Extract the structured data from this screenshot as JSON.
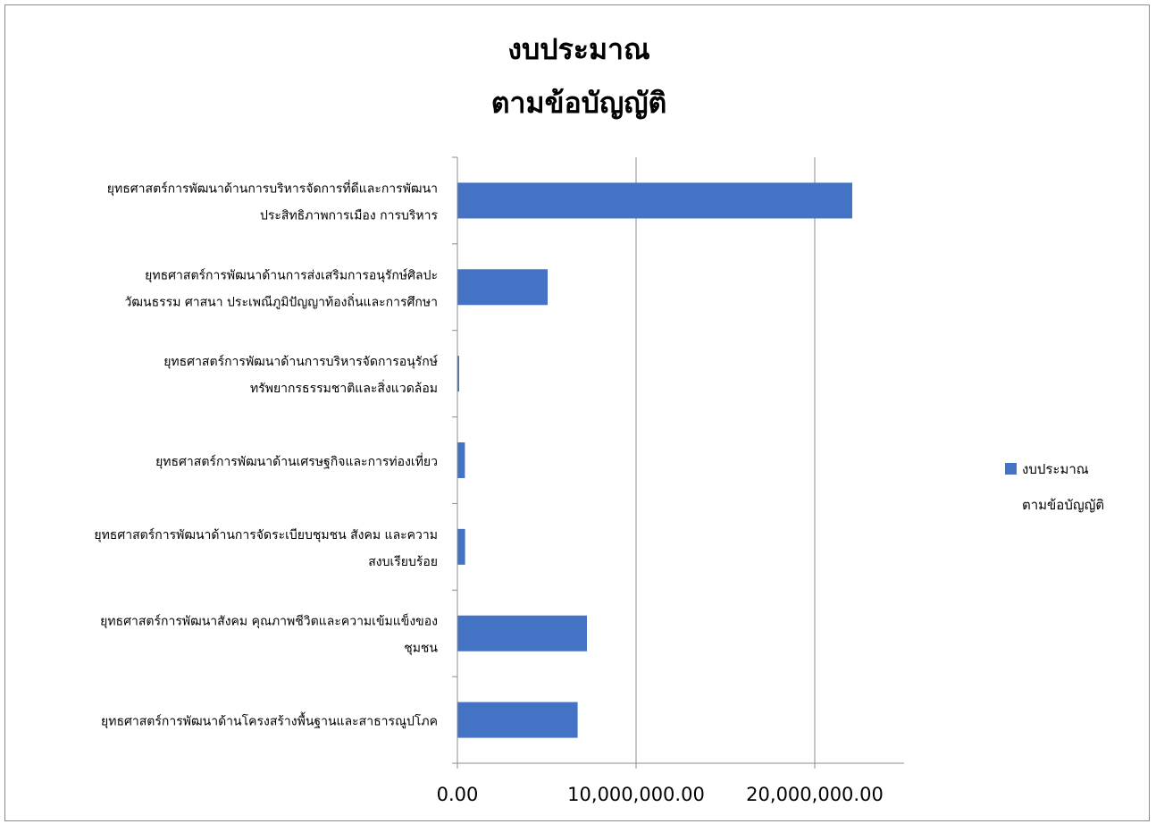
{
  "chart_data": {
    "type": "bar",
    "orientation": "horizontal",
    "title_lines": [
      "งบประมาณ",
      "ตามข้อบัญญัติ"
    ],
    "categories": [
      [
        "ยุทธศาสตร์การพัฒนาด้านการบริหารจัดการที่ดีและการพัฒนา",
        "ประสิทธิภาพการเมือง การบริหาร"
      ],
      [
        "ยุทธศาสตร์การพัฒนาด้านการส่งเสริมการอนุรักษ์ศิลปะ",
        "วัฒนธรรม ศาสนา ประเพณีภูมิปัญญาท้องถิ่นและการศึกษา"
      ],
      [
        "ยุทธศาสตร์การพัฒนาด้านการบริหารจัดการอนุรักษ์",
        "ทรัพยากรธรรมชาติและสิ่งแวดล้อม"
      ],
      [
        "ยุทธศาสตร์การพัฒนาด้านเศรษฐกิจและการท่องเที่ยว"
      ],
      [
        "ยุทธศาสตร์การพัฒนาด้านการจัดระเบียบชุมชน สังคม และความ",
        "สงบเรียบร้อย"
      ],
      [
        "ยุทธศาสตร์การพัฒนาสังคม คุณภาพชีวิตและความเข้มแข็งของ",
        "ชุมชน"
      ],
      [
        "ยุทธศาสตร์การพัฒนาด้านโครงสร้างพื้นฐานและสาธารณูปโภค"
      ]
    ],
    "series": [
      {
        "name_lines": [
          "งบประมาณ",
          "ตามข้อบัญญัติ"
        ],
        "color": "#4472C4",
        "values": [
          22100000,
          5050000,
          100000,
          420000,
          430000,
          7250000,
          6730000
        ]
      }
    ],
    "xlim": [
      0,
      25000000
    ],
    "x_ticks": [
      0,
      10000000,
      20000000
    ],
    "x_tick_labels": [
      "0.00",
      "10,000,000.00",
      "20,000,000.00"
    ],
    "grid": "vertical",
    "legend_position": "right"
  }
}
